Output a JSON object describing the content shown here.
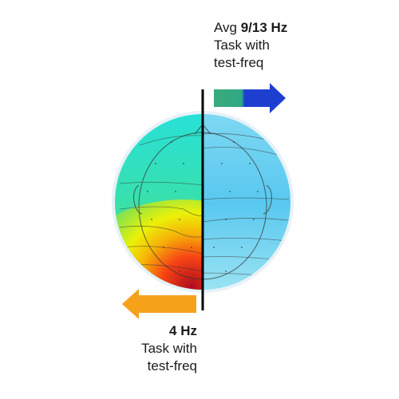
{
  "right_label": {
    "prefix": "Avg ",
    "freq": "9/13 Hz",
    "line2": "Task with",
    "line3": "test-freq"
  },
  "left_label": {
    "freq": "4 Hz",
    "line2": "Task with",
    "line3": "test-freq"
  },
  "colors": {
    "right_arrow_start": "#3aaa7a",
    "right_arrow_end": "#1d3fd0",
    "left_arrow": "#f5a11a",
    "divider": "#000000"
  },
  "icons": [
    "right-arrow-icon",
    "left-arrow-icon",
    "scalp-topography-map"
  ]
}
